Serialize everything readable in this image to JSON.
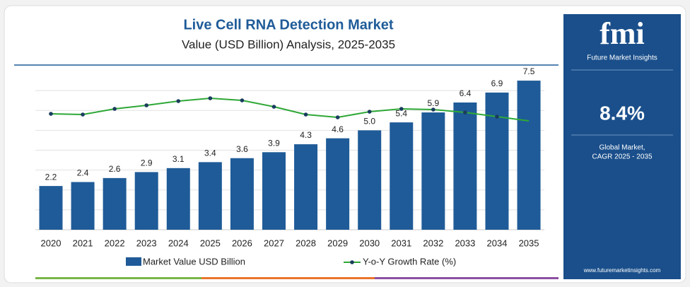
{
  "chart_data": {
    "type": "bar",
    "title": "Live Cell RNA Detection Market",
    "subtitle": "Value (USD Billion) Analysis, 2025-2035",
    "categories": [
      "2020",
      "2021",
      "2022",
      "2023",
      "2024",
      "2025",
      "2026",
      "2027",
      "2028",
      "2029",
      "2030",
      "2031",
      "2032",
      "2033",
      "2034",
      "2035"
    ],
    "series": [
      {
        "name": "Market Value USD Billion",
        "type": "bar",
        "color": "#1f5b98",
        "values": [
          2.2,
          2.4,
          2.6,
          2.9,
          3.1,
          3.4,
          3.6,
          3.9,
          4.3,
          4.6,
          5.0,
          5.4,
          5.9,
          6.4,
          6.9,
          7.5
        ],
        "value_labels": [
          "2.2",
          "2.4",
          "2.6",
          "2.9",
          "3.1",
          "3.4",
          "3.6",
          "3.9",
          "4.3",
          "4.6",
          "5.0",
          "5.4",
          "5.9",
          "6.4",
          "6.9",
          "7.5"
        ]
      },
      {
        "name": "Y-o-Y Growth Rate (%)",
        "type": "line",
        "axis": "y2",
        "color": "#2ea836",
        "values": [
          8.4,
          8.3,
          9.1,
          9.6,
          10.2,
          10.6,
          10.3,
          9.4,
          8.3,
          7.9,
          8.7,
          9.1,
          9.0,
          8.6,
          8.0,
          7.4
        ]
      }
    ],
    "ylim": [
      0,
      8
    ],
    "y2lim": [
      -8,
      14.5
    ],
    "grid": true,
    "legend": "bottom"
  },
  "side_panel": {
    "logo": "fmi",
    "brand": "Future Market Insights",
    "cagr": "8.4%",
    "cagr_label_1": "Global Market,",
    "cagr_label_2": "CAGR 2025 - 2035",
    "website": "www.futuremarketinsights.com"
  }
}
